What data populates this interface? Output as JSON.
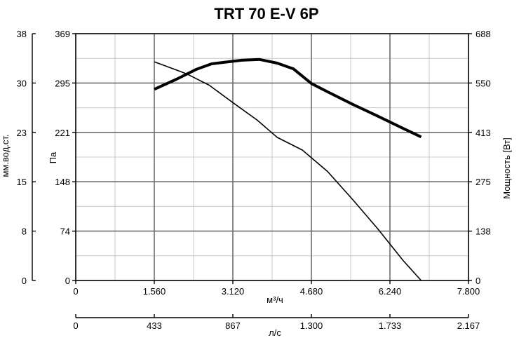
{
  "chart_data": {
    "type": "line",
    "title": "TRT 70 E-V 6P",
    "x_axis_primary": {
      "label": "м³/ч",
      "range": [
        0,
        7800
      ],
      "tick_values": [
        0,
        1560,
        3120,
        4680,
        6240,
        7800
      ],
      "tick_labels": [
        "0",
        "1.560",
        "3.120",
        "4.680",
        "6.240",
        "7.800"
      ]
    },
    "x_axis_secondary": {
      "label": "л/с",
      "tick_labels": [
        "0",
        "433",
        "867",
        "1.300",
        "1.733",
        "2.167"
      ]
    },
    "y_axis_left_outer": {
      "label": "мм.вод.ст.",
      "tick_labels": [
        "0",
        "8",
        "15",
        "23",
        "30",
        "38"
      ]
    },
    "y_axis_left_inner": {
      "label": "Па",
      "range": [
        0,
        369
      ],
      "tick_values": [
        0,
        74,
        148,
        221,
        295,
        369
      ],
      "tick_labels": [
        "0",
        "74",
        "148",
        "221",
        "295",
        "369"
      ]
    },
    "y_axis_right": {
      "label": "Мощность [Вт]",
      "range": [
        0,
        688
      ],
      "tick_values": [
        0,
        138,
        275,
        413,
        550,
        688
      ],
      "tick_labels": [
        "0",
        "138",
        "275",
        "413",
        "550",
        "688"
      ]
    },
    "grid": true,
    "series": [
      {
        "axis": "pressure",
        "stroke_width": 1.6,
        "points": [
          [
            1560,
            327
          ],
          [
            2200,
            309
          ],
          [
            2650,
            292
          ],
          [
            3120,
            266
          ],
          [
            3600,
            240
          ],
          [
            4000,
            214
          ],
          [
            4500,
            195
          ],
          [
            5000,
            163
          ],
          [
            5500,
            121
          ],
          [
            6000,
            77
          ],
          [
            6500,
            30
          ],
          [
            6860,
            0
          ]
        ]
      },
      {
        "axis": "power",
        "stroke_width": 4,
        "points": [
          [
            1560,
            533
          ],
          [
            2000,
            561
          ],
          [
            2400,
            589
          ],
          [
            2700,
            604
          ],
          [
            3000,
            609
          ],
          [
            3300,
            614
          ],
          [
            3650,
            616
          ],
          [
            4000,
            606
          ],
          [
            4320,
            590
          ],
          [
            4680,
            549
          ],
          [
            5000,
            526
          ],
          [
            5500,
            491
          ],
          [
            6000,
            458
          ],
          [
            6500,
            424
          ],
          [
            6860,
            400
          ]
        ]
      }
    ],
    "colors": {
      "lines": "#000000",
      "grid": "#c8c8c8",
      "axes": "#000000"
    }
  }
}
